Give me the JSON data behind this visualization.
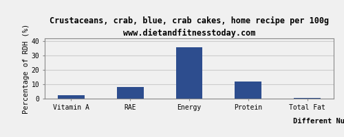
{
  "title": "Crustaceans, crab, blue, crab cakes, home recipe per 100g",
  "subtitle": "www.dietandfitnesstoday.com",
  "categories": [
    "Vitamin A",
    "RAE",
    "Energy",
    "Protein",
    "Total Fat"
  ],
  "values": [
    2.5,
    8.0,
    36.0,
    12.0,
    0.3
  ],
  "bar_color": "#2d4d8e",
  "xlabel": "Different Nutrients",
  "ylabel": "Percentage of RDH (%)",
  "ylim": [
    0,
    42
  ],
  "yticks": [
    0,
    10,
    20,
    30,
    40
  ],
  "background_color": "#f0f0f0",
  "plot_bg_color": "#f0f0f0",
  "grid_color": "#cccccc",
  "border_color": "#888888",
  "title_fontsize": 8.5,
  "subtitle_fontsize": 7.5,
  "axis_label_fontsize": 7.5,
  "tick_fontsize": 7
}
